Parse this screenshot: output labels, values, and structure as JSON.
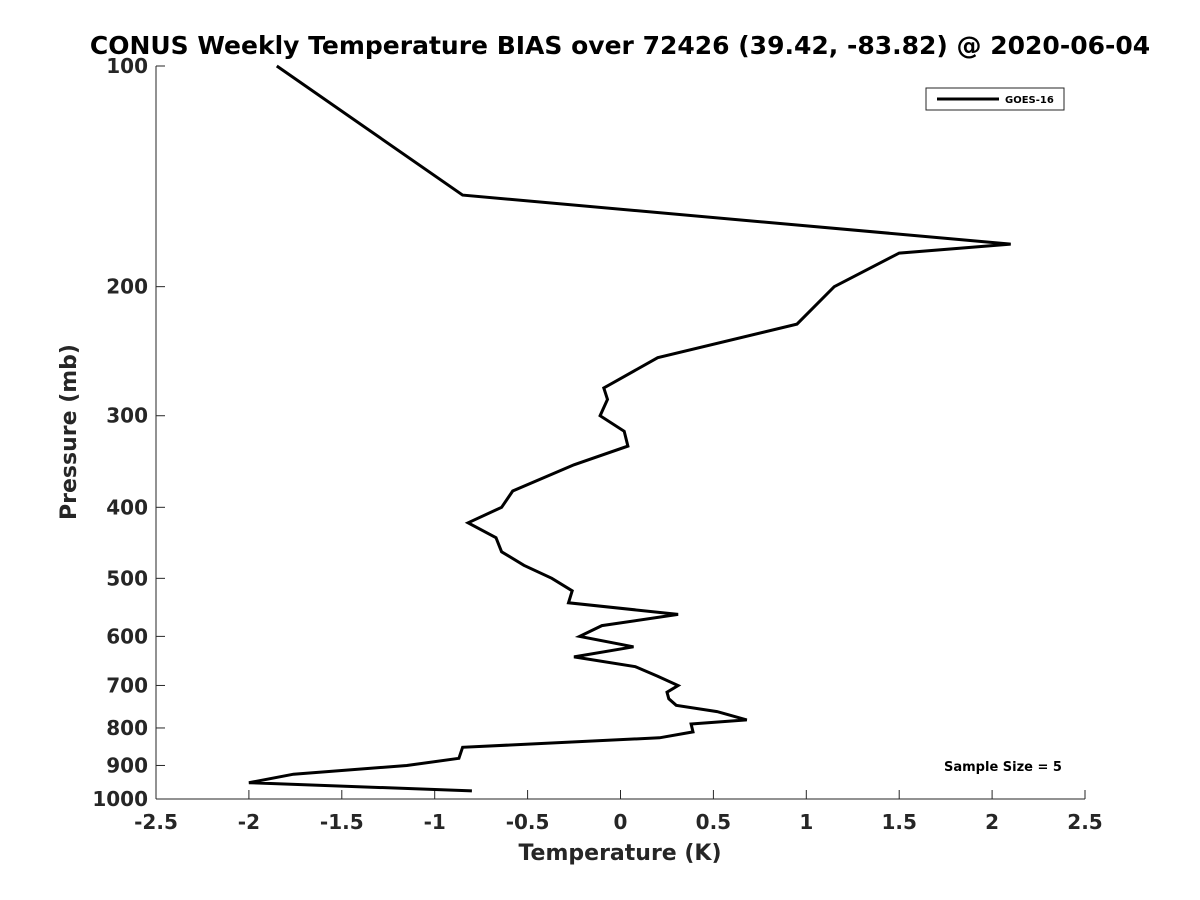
{
  "chart_data": {
    "type": "line",
    "title": "CONUS Weekly Temperature BIAS over 72426 (39.42, -83.82) @ 2020-06-04",
    "xlabel": "Temperature (K)",
    "ylabel": "Pressure (mb)",
    "xlim": [
      -2.5,
      2.5
    ],
    "ylim": [
      100,
      1000
    ],
    "yscale": "log",
    "y_reversed": true,
    "x_ticks": [
      -2.5,
      -2,
      -1.5,
      -1,
      -0.5,
      0,
      0.5,
      1,
      1.5,
      2,
      2.5
    ],
    "x_tick_labels": [
      "-2.5",
      "-2",
      "-1.5",
      "-1",
      "-0.5",
      "0",
      "0.5",
      "1",
      "1.5",
      "2",
      "2.5"
    ],
    "y_ticks": [
      100,
      200,
      300,
      400,
      500,
      600,
      700,
      800,
      900,
      1000
    ],
    "y_tick_labels": [
      "100",
      "200",
      "300",
      "400",
      "500",
      "600",
      "700",
      "800",
      "900",
      "1000"
    ],
    "grid": false,
    "legend_position": "top-right",
    "series": [
      {
        "name": "GOES-16",
        "color": "#000000",
        "points": [
          {
            "x": -1.85,
            "y": 100
          },
          {
            "x": -0.85,
            "y": 150
          },
          {
            "x": 2.1,
            "y": 175
          },
          {
            "x": 1.5,
            "y": 180
          },
          {
            "x": 1.15,
            "y": 200
          },
          {
            "x": 0.95,
            "y": 225
          },
          {
            "x": 0.2,
            "y": 250
          },
          {
            "x": -0.09,
            "y": 275
          },
          {
            "x": -0.07,
            "y": 285
          },
          {
            "x": -0.11,
            "y": 300
          },
          {
            "x": 0.02,
            "y": 315
          },
          {
            "x": 0.04,
            "y": 330
          },
          {
            "x": -0.25,
            "y": 350
          },
          {
            "x": -0.58,
            "y": 380
          },
          {
            "x": -0.64,
            "y": 400
          },
          {
            "x": -0.82,
            "y": 420
          },
          {
            "x": -0.67,
            "y": 440
          },
          {
            "x": -0.64,
            "y": 460
          },
          {
            "x": -0.52,
            "y": 480
          },
          {
            "x": -0.37,
            "y": 500
          },
          {
            "x": -0.26,
            "y": 520
          },
          {
            "x": -0.28,
            "y": 540
          },
          {
            "x": 0.31,
            "y": 560
          },
          {
            "x": -0.1,
            "y": 580
          },
          {
            "x": -0.22,
            "y": 600
          },
          {
            "x": 0.07,
            "y": 620
          },
          {
            "x": -0.25,
            "y": 640
          },
          {
            "x": 0.08,
            "y": 660
          },
          {
            "x": 0.2,
            "y": 680
          },
          {
            "x": 0.31,
            "y": 700
          },
          {
            "x": 0.25,
            "y": 715
          },
          {
            "x": 0.26,
            "y": 730
          },
          {
            "x": 0.3,
            "y": 745
          },
          {
            "x": 0.52,
            "y": 760
          },
          {
            "x": 0.68,
            "y": 780
          },
          {
            "x": 0.38,
            "y": 790
          },
          {
            "x": 0.39,
            "y": 810
          },
          {
            "x": 0.21,
            "y": 825
          },
          {
            "x": -0.85,
            "y": 850
          },
          {
            "x": -0.87,
            "y": 880
          },
          {
            "x": -1.15,
            "y": 900
          },
          {
            "x": -1.76,
            "y": 925
          },
          {
            "x": -2.0,
            "y": 950
          },
          {
            "x": -0.8,
            "y": 975
          }
        ]
      }
    ],
    "annotations": [
      "Sample Size = 5"
    ]
  }
}
